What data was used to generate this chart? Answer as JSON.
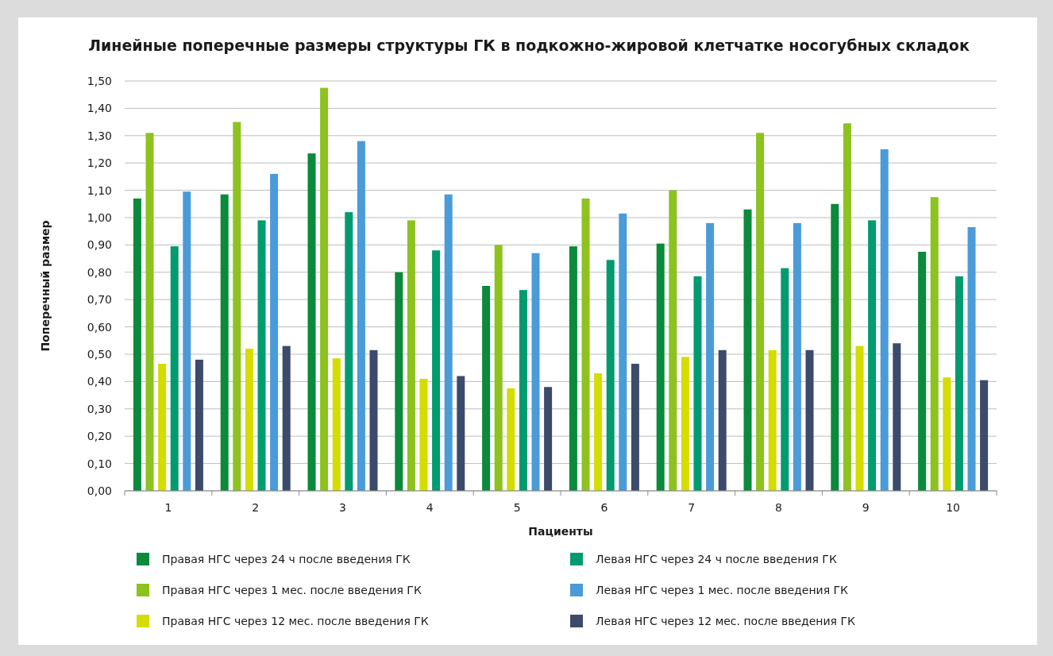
{
  "chart_data": {
    "type": "bar",
    "title": "Линейные поперечные размеры структуры ГК в подкожно-жировой клетчатке носогубных складок",
    "xlabel": "Пациенты",
    "ylabel": "Поперечный размер",
    "categories": [
      "1",
      "2",
      "3",
      "4",
      "5",
      "6",
      "7",
      "8",
      "9",
      "10"
    ],
    "series": [
      {
        "name": "Правая НГС через 24 ч после введения ГК",
        "color": "#0a8a3a",
        "values": [
          1.07,
          1.085,
          1.235,
          0.8,
          0.75,
          0.895,
          0.905,
          1.03,
          1.05,
          0.875
        ]
      },
      {
        "name": "Правая НГС через 1 мес. после введения ГК",
        "color": "#8dc21f",
        "values": [
          1.31,
          1.35,
          1.475,
          0.99,
          0.9,
          1.07,
          1.1,
          1.31,
          1.345,
          1.075
        ]
      },
      {
        "name": "Правая НГС через 12 мес. после введения ГК",
        "color": "#d4dc00",
        "values": [
          0.465,
          0.52,
          0.485,
          0.41,
          0.375,
          0.43,
          0.49,
          0.515,
          0.53,
          0.415
        ]
      },
      {
        "name": "Левая НГС через 24 ч после введения ГК",
        "color": "#009b6e",
        "values": [
          0.895,
          0.99,
          1.02,
          0.88,
          0.735,
          0.845,
          0.785,
          0.815,
          0.99,
          0.785
        ]
      },
      {
        "name": "Левая НГС через 1 мес. после введения ГК",
        "color": "#4a9bd8",
        "values": [
          1.095,
          1.16,
          1.28,
          1.085,
          0.87,
          1.015,
          0.98,
          0.98,
          1.25,
          0.965
        ]
      },
      {
        "name": "Левая НГС через 12 мес. после введения ГК",
        "color": "#3c4a6b",
        "values": [
          0.48,
          0.53,
          0.515,
          0.42,
          0.38,
          0.465,
          0.515,
          0.515,
          0.54,
          0.405
        ]
      }
    ],
    "ylim": [
      0,
      1.5
    ],
    "yticks": [
      {
        "value": 0,
        "label": "0,00"
      },
      {
        "value": 0.1,
        "label": "0,10"
      },
      {
        "value": 0.2,
        "label": "0,20"
      },
      {
        "value": 0.3,
        "label": "0,30"
      },
      {
        "value": 0.4,
        "label": "0,40"
      },
      {
        "value": 0.5,
        "label": "0,50"
      },
      {
        "value": 0.6,
        "label": "0,60"
      },
      {
        "value": 0.7,
        "label": "0,70"
      },
      {
        "value": 0.8,
        "label": "0,80"
      },
      {
        "value": 0.9,
        "label": "0,90"
      },
      {
        "value": 1.0,
        "label": "1,00"
      },
      {
        "value": 1.1,
        "label": "1,10"
      },
      {
        "value": 1.2,
        "label": "1,20"
      },
      {
        "value": 1.3,
        "label": "1,30"
      },
      {
        "value": 1.4,
        "label": "1,40"
      },
      {
        "value": 1.5,
        "label": "1,50"
      }
    ],
    "grid": "y",
    "legend": "bottom"
  }
}
